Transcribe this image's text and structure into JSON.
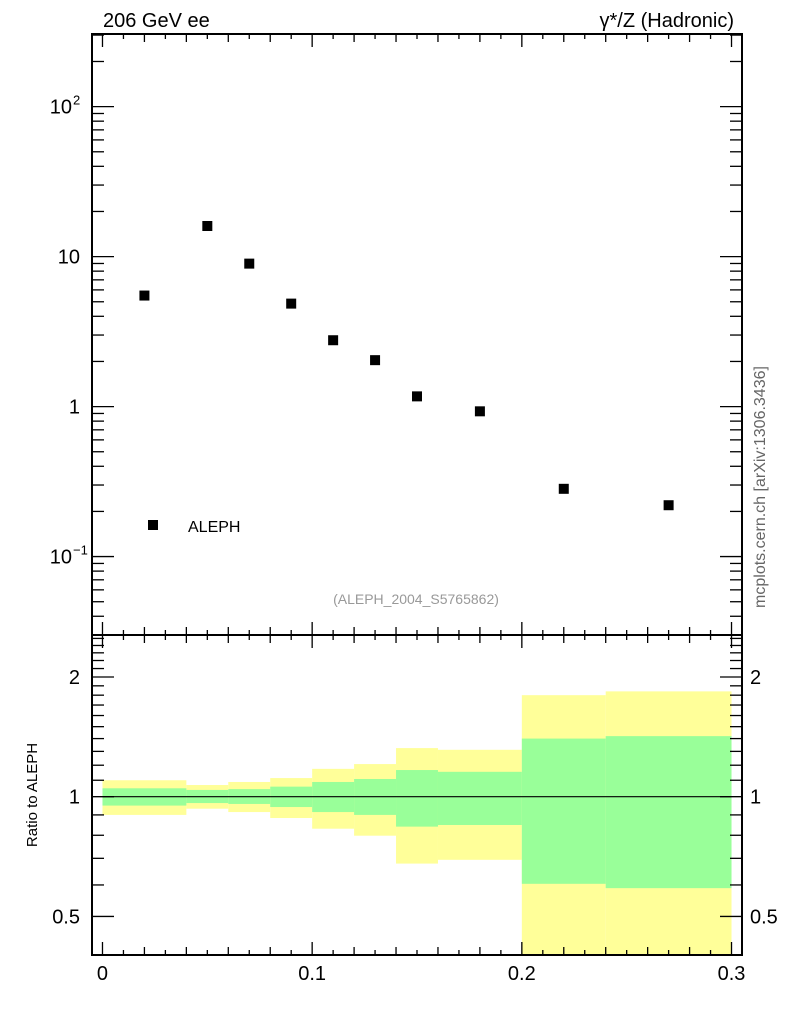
{
  "chart_data": [
    {
      "type": "scatter",
      "title_left": "206 GeV ee",
      "title_right": "γ*/Z (Hadronic)",
      "yscale": "log",
      "xlim": [
        -0.005,
        0.305
      ],
      "ylim": [
        0.03,
        305
      ],
      "ytick_labels": [
        {
          "value": 100,
          "base": "10",
          "exp": "2"
        },
        {
          "value": 10,
          "base": "10",
          "exp": ""
        },
        {
          "value": 1,
          "base": "1",
          "exp": ""
        },
        {
          "value": 0.1,
          "base": "10",
          "exp": "−1"
        }
      ],
      "series": [
        {
          "name": "ALEPH",
          "color": "#000000",
          "marker": "square",
          "x": [
            0.02,
            0.05,
            0.07,
            0.09,
            0.11,
            0.13,
            0.15,
            0.18,
            0.22,
            0.27
          ],
          "y": [
            5.5,
            16.0,
            8.98,
            4.86,
            2.77,
            2.04,
            1.17,
            0.93,
            0.283,
            0.22
          ]
        }
      ],
      "legend": {
        "placement": "bottom-left",
        "entries": [
          "ALEPH"
        ]
      },
      "annotation": "(ALEPH_2004_S5765862)"
    },
    {
      "type": "area",
      "ylabel": "Ratio to ALEPH",
      "yscale": "log",
      "xlim": [
        -0.005,
        0.305
      ],
      "ylim": [
        0.4,
        2.55
      ],
      "xtick_labels": [
        "0",
        "0.1",
        "0.2",
        "0.3"
      ],
      "xticks": [
        0,
        0.1,
        0.2,
        0.3
      ],
      "ytick_labels": [
        "0.5",
        "1",
        "2"
      ],
      "yticks": [
        0.5,
        1,
        2
      ],
      "bin_edges": [
        0,
        0.04,
        0.06,
        0.08,
        0.1,
        0.12,
        0.14,
        0.16,
        0.2,
        0.24,
        0.3
      ],
      "bands": [
        {
          "name": "total-uncertainty",
          "color": "#ffff99",
          "upper": [
            1.1,
            1.07,
            1.089,
            1.114,
            1.175,
            1.208,
            1.325,
            1.312,
            1.8,
            1.84
          ],
          "lower": [
            0.9,
            0.933,
            0.915,
            0.884,
            0.831,
            0.798,
            0.679,
            0.694,
            0.38,
            0.38
          ]
        },
        {
          "name": "stat-uncertainty",
          "color": "#99ff99",
          "upper": [
            1.05,
            1.04,
            1.045,
            1.06,
            1.089,
            1.108,
            1.167,
            1.155,
            1.4,
            1.42
          ],
          "lower": [
            0.95,
            0.964,
            0.959,
            0.942,
            0.915,
            0.9,
            0.841,
            0.849,
            0.604,
            0.589
          ]
        }
      ],
      "reference_line": 1
    }
  ],
  "watermark": "mcplots.cern.ch [arXiv:1306.3436]"
}
